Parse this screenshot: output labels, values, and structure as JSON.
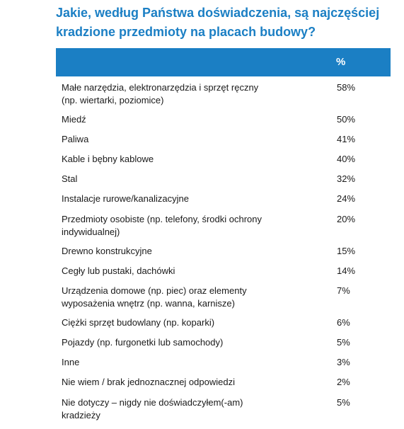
{
  "title": "Jakie, według Państwa doświadczenia, są najczęściej kradzione przedmioty na placach budowy?",
  "table": {
    "header_value": "%",
    "rows": [
      {
        "label": "Małe narzędzia, elektronarzędzia i sprzęt ręczny (np. wiertarki, poziomice)",
        "value": "58%"
      },
      {
        "label": "Miedź",
        "value": "50%"
      },
      {
        "label": "Paliwa",
        "value": "41%"
      },
      {
        "label": "Kable i bębny kablowe",
        "value": "40%"
      },
      {
        "label": "Stal",
        "value": "32%"
      },
      {
        "label": "Instalacje rurowe/kanalizacyjne",
        "value": "24%"
      },
      {
        "label": "Przedmioty osobiste (np. telefony, środki ochrony indywidualnej)",
        "value": "20%"
      },
      {
        "label": "Drewno konstrukcyjne",
        "value": "15%"
      },
      {
        "label": "Cegły lub pustaki, dachówki",
        "value": "14%"
      },
      {
        "label": "Urządzenia domowe (np. piec) oraz elementy wyposażenia wnętrz (np. wanna, karnisze)",
        "value": "7%"
      },
      {
        "label": "Ciężki sprzęt budowlany (np. koparki)",
        "value": "6%"
      },
      {
        "label": "Pojazdy (np. furgonetki lub samochody)",
        "value": "5%"
      },
      {
        "label": "Inne",
        "value": "3%"
      },
      {
        "label": "Nie wiem / brak jednoznacznej odpowiedzi",
        "value": "2%"
      },
      {
        "label": "Nie dotyczy – nigdy nie doświadczyłem(-am) kradzieży",
        "value": "5%"
      }
    ]
  }
}
